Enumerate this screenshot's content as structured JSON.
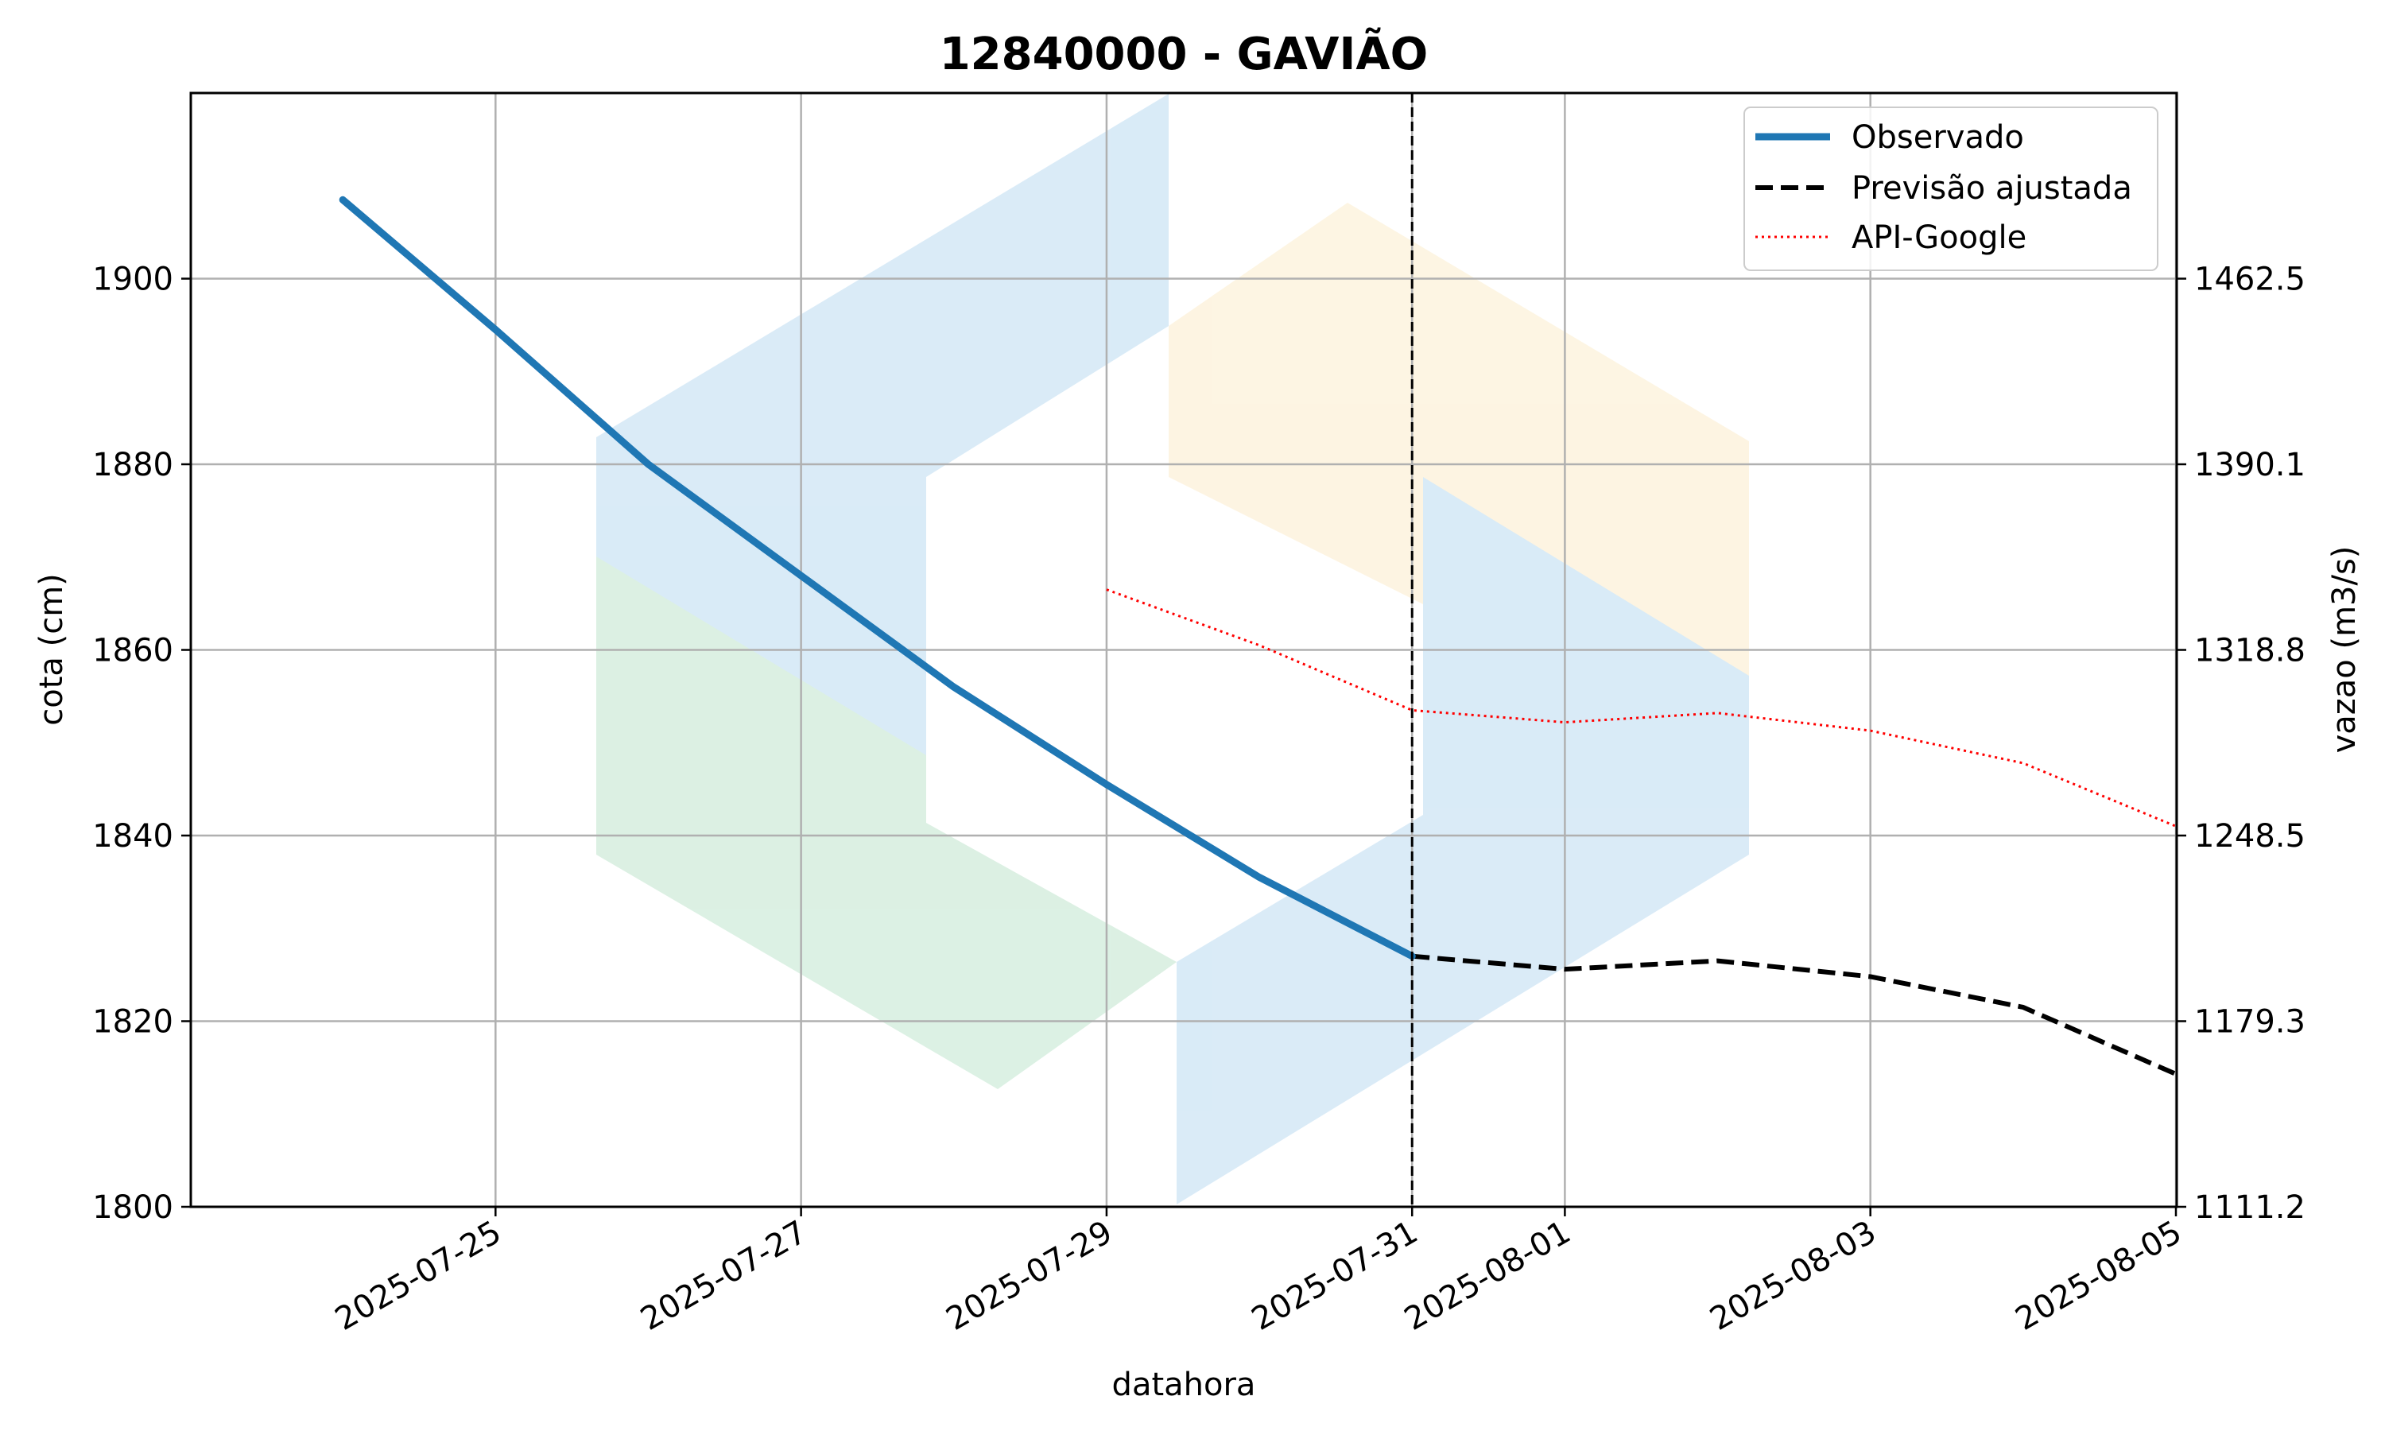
{
  "chart_data": {
    "type": "line",
    "title": "12840000 - GAVIÃO",
    "xlabel": "datahora",
    "ylabel": "cota (cm)",
    "y2label": "vazao (m3/s)",
    "xlim": [
      "2025-07-23",
      "2025-08-05"
    ],
    "xticks": [
      "2025-07-25",
      "2025-07-27",
      "2025-07-29",
      "2025-07-31",
      "2025-08-01",
      "2025-08-03",
      "2025-08-05"
    ],
    "ylim": [
      1800,
      1920
    ],
    "yticks": [
      1800,
      1820,
      1840,
      1860,
      1880,
      1900
    ],
    "y2ticks": [
      "1111.2",
      "1179.3",
      "1248.5",
      "1318.8",
      "1390.1",
      "1462.5"
    ],
    "grid": true,
    "legend_position": "top-right",
    "vline": "2025-07-31",
    "series": [
      {
        "name": "Observado",
        "color": "#1f77b4",
        "style": "solid",
        "x": [
          "2025-07-24",
          "2025-07-25",
          "2025-07-26",
          "2025-07-27",
          "2025-07-28",
          "2025-07-29",
          "2025-07-30",
          "2025-07-31"
        ],
        "values": [
          1908.5,
          1894.5,
          1880,
          1868,
          1856,
          1845.5,
          1835.5,
          1827
        ]
      },
      {
        "name": "Previsão ajustada",
        "color": "#000000",
        "style": "dashed",
        "x": [
          "2025-07-31",
          "2025-08-01",
          "2025-08-02",
          "2025-08-03",
          "2025-08-04",
          "2025-08-05"
        ],
        "values": [
          1827,
          1825.6,
          1826.5,
          1824.8,
          1821.5,
          1814.3
        ]
      },
      {
        "name": "API-Google",
        "color": "#ff0000",
        "style": "dotted",
        "x": [
          "2025-07-29",
          "2025-07-30",
          "2025-07-31",
          "2025-08-01",
          "2025-08-02",
          "2025-08-03",
          "2025-08-04",
          "2025-08-05"
        ],
        "values": [
          1866.5,
          1860.5,
          1853.5,
          1852.2,
          1853.2,
          1851.3,
          1847.8,
          1841
        ]
      }
    ]
  }
}
